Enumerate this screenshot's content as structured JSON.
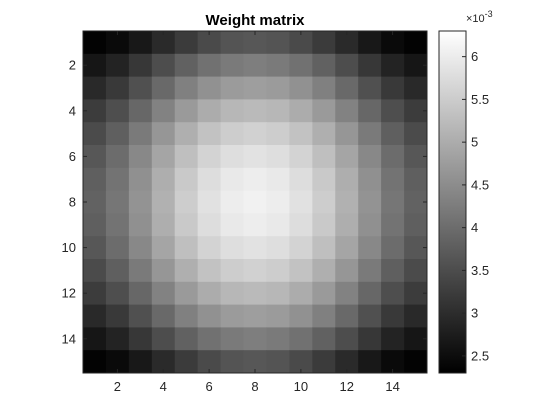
{
  "chart_data": {
    "type": "heatmap",
    "title": "Weight matrix",
    "rows": 15,
    "cols": 15,
    "colormap": "gray",
    "x_ticks": [
      2,
      4,
      6,
      8,
      10,
      12,
      14
    ],
    "x_tick_labels": [
      "2",
      "4",
      "6",
      "8",
      "10",
      "12",
      "14"
    ],
    "y_ticks": [
      2,
      4,
      6,
      8,
      10,
      12,
      14
    ],
    "y_tick_labels": [
      "2",
      "4",
      "6",
      "8",
      "10",
      "12",
      "14"
    ],
    "colorbar": {
      "range": [
        2.3,
        6.3
      ],
      "multiplier_label": "×10",
      "multiplier_exponent": "-3",
      "ticks": [
        2.5,
        3,
        3.5,
        4,
        4.5,
        5,
        5.5,
        6
      ],
      "tick_labels": [
        "2.5",
        "3",
        "3.5",
        "4",
        "4.5",
        "5",
        "5.5",
        "6"
      ]
    },
    "values": [
      [
        2.35,
        2.46,
        2.67,
        2.96,
        3.23,
        3.46,
        3.61,
        3.66,
        3.61,
        3.46,
        3.23,
        2.96,
        2.67,
        2.46,
        2.35
      ],
      [
        2.64,
        2.85,
        3.16,
        3.5,
        3.82,
        4.07,
        4.22,
        4.27,
        4.22,
        4.07,
        3.82,
        3.5,
        3.16,
        2.85,
        2.64
      ],
      [
        2.94,
        3.2,
        3.56,
        3.95,
        4.3,
        4.57,
        4.73,
        4.78,
        4.73,
        4.57,
        4.3,
        3.95,
        3.56,
        3.2,
        2.94
      ],
      [
        3.24,
        3.52,
        3.92,
        4.34,
        4.72,
        5.0,
        5.17,
        5.22,
        5.17,
        5.0,
        4.72,
        4.34,
        3.92,
        3.52,
        3.24
      ],
      [
        3.48,
        3.79,
        4.21,
        4.65,
        5.05,
        5.35,
        5.52,
        5.58,
        5.52,
        5.35,
        5.05,
        4.65,
        4.21,
        3.79,
        3.48
      ],
      [
        3.67,
        3.99,
        4.43,
        4.89,
        5.3,
        5.61,
        5.79,
        5.85,
        5.79,
        5.61,
        5.3,
        4.89,
        4.43,
        3.99,
        3.67
      ],
      [
        3.79,
        4.11,
        4.56,
        5.03,
        5.46,
        5.77,
        5.96,
        6.02,
        5.96,
        5.77,
        5.46,
        5.03,
        4.56,
        4.11,
        3.79
      ],
      [
        3.83,
        4.15,
        4.6,
        5.08,
        5.51,
        5.83,
        6.02,
        6.08,
        6.02,
        5.83,
        5.51,
        5.08,
        4.6,
        4.15,
        3.83
      ],
      [
        3.79,
        4.11,
        4.56,
        5.03,
        5.46,
        5.77,
        5.96,
        6.02,
        5.96,
        5.77,
        5.46,
        5.03,
        4.56,
        4.11,
        3.79
      ],
      [
        3.67,
        3.99,
        4.43,
        4.89,
        5.3,
        5.61,
        5.79,
        5.85,
        5.79,
        5.61,
        5.3,
        4.89,
        4.43,
        3.99,
        3.67
      ],
      [
        3.48,
        3.79,
        4.21,
        4.65,
        5.05,
        5.35,
        5.52,
        5.58,
        5.52,
        5.35,
        5.05,
        4.65,
        4.21,
        3.79,
        3.48
      ],
      [
        3.24,
        3.52,
        3.92,
        4.34,
        4.72,
        5.0,
        5.17,
        5.22,
        5.17,
        5.0,
        4.72,
        4.34,
        3.92,
        3.52,
        3.24
      ],
      [
        2.94,
        3.2,
        3.56,
        3.95,
        4.3,
        4.57,
        4.73,
        4.78,
        4.73,
        4.57,
        4.3,
        3.95,
        3.56,
        3.2,
        2.94
      ],
      [
        2.64,
        2.85,
        3.16,
        3.5,
        3.82,
        4.07,
        4.22,
        4.27,
        4.22,
        4.07,
        3.82,
        3.5,
        3.16,
        2.85,
        2.64
      ],
      [
        2.35,
        2.46,
        2.67,
        2.96,
        3.23,
        3.46,
        3.61,
        3.66,
        3.61,
        3.46,
        3.23,
        2.96,
        2.67,
        2.46,
        2.35
      ]
    ]
  }
}
